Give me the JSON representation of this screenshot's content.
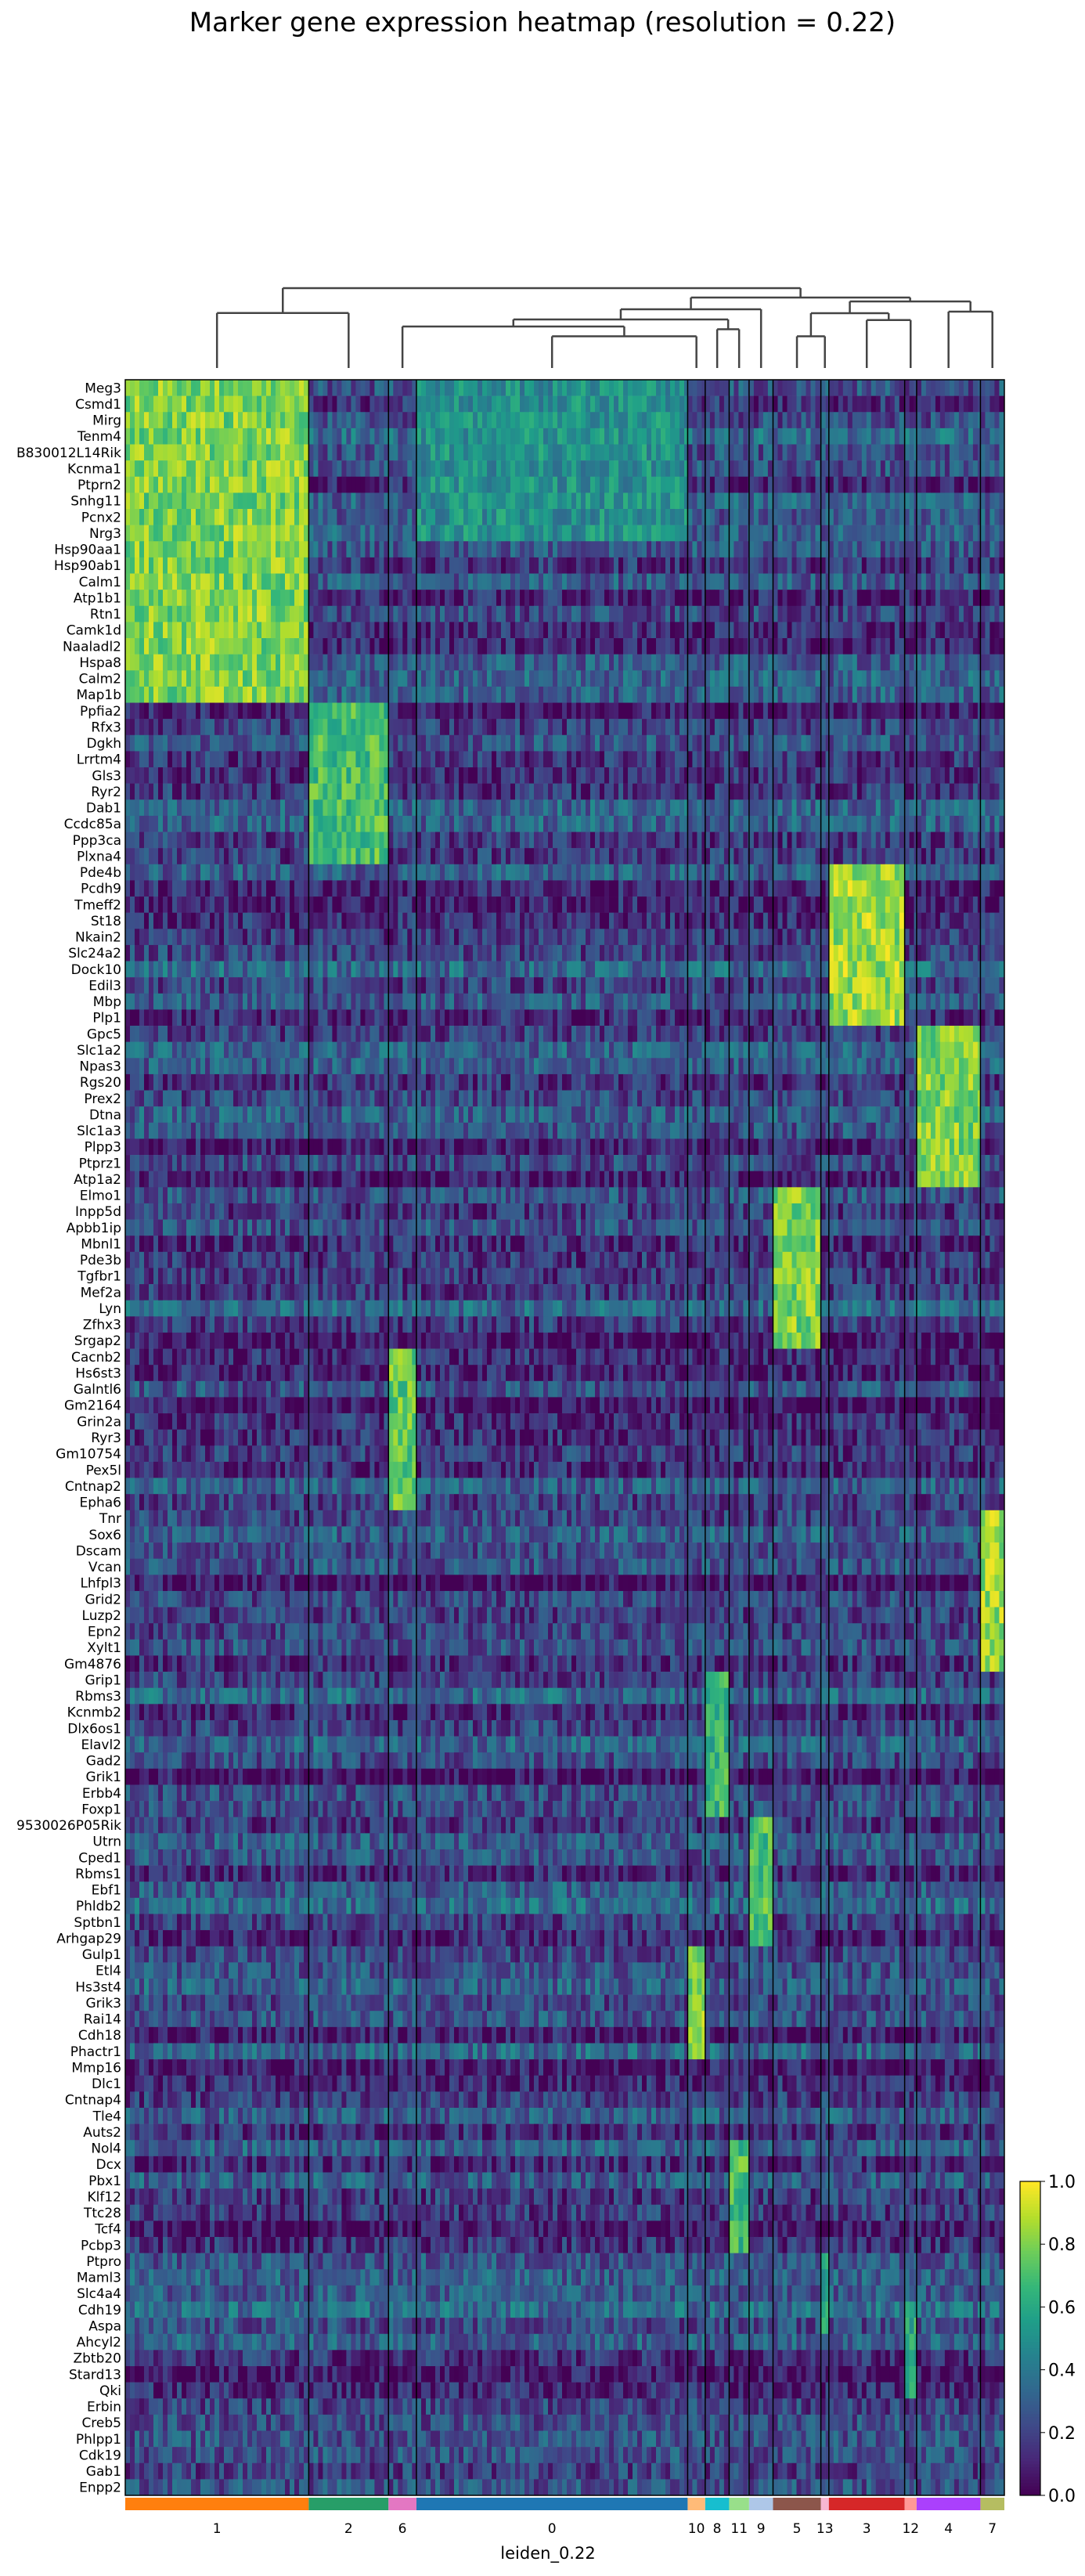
{
  "chart_data": {
    "type": "heatmap",
    "title": "Marker gene expression heatmap (resolution = 0.22)",
    "xlabel": "leiden_0.22",
    "colorbar": {
      "colormap": "viridis",
      "range": [
        0.0,
        1.0
      ],
      "ticks": [
        "0.0",
        "0.2",
        "0.4",
        "0.6",
        "0.8",
        "1.0"
      ]
    },
    "genes": [
      "Meg3",
      "Csmd1",
      "Mirg",
      "Tenm4",
      "B830012L14Rik",
      "Kcnma1",
      "Ptprn2",
      "Snhg11",
      "Pcnx2",
      "Nrg3",
      "Hsp90aa1",
      "Hsp90ab1",
      "Calm1",
      "Atp1b1",
      "Rtn1",
      "Camk1d",
      "Naaladl2",
      "Hspa8",
      "Calm2",
      "Map1b",
      "Ppfia2",
      "Rfx3",
      "Dgkh",
      "Lrrtm4",
      "Gls3",
      "Ryr2",
      "Dab1",
      "Ccdc85a",
      "Ppp3ca",
      "Plxna4",
      "Pde4b",
      "Pcdh9",
      "Tmeff2",
      "St18",
      "Nkain2",
      "Slc24a2",
      "Dock10",
      "Edil3",
      "Mbp",
      "Plp1",
      "Gpc5",
      "Slc1a2",
      "Npas3",
      "Rgs20",
      "Prex2",
      "Dtna",
      "Slc1a3",
      "Plpp3",
      "Ptprz1",
      "Atp1a2",
      "Elmo1",
      "Inpp5d",
      "Apbb1ip",
      "Mbnl1",
      "Pde3b",
      "Tgfbr1",
      "Mef2a",
      "Lyn",
      "Zfhx3",
      "Srgap2",
      "Cacnb2",
      "Hs6st3",
      "Galntl6",
      "Gm2164",
      "Grin2a",
      "Ryr3",
      "Gm10754",
      "Pex5l",
      "Cntnap2",
      "Epha6",
      "Tnr",
      "Sox6",
      "Dscam",
      "Vcan",
      "Lhfpl3",
      "Grid2",
      "Luzp2",
      "Epn2",
      "Xylt1",
      "Gm4876",
      "Grip1",
      "Rbms3",
      "Kcnmb2",
      "Dlx6os1",
      "Elavl2",
      "Gad2",
      "Grik1",
      "Erbb4",
      "Foxp1",
      "9530026P05Rik",
      "Utrn",
      "Cped1",
      "Rbms1",
      "Ebf1",
      "Phldb2",
      "Sptbn1",
      "Arhgap29",
      "Gulp1",
      "Etl4",
      "Hs3st4",
      "Grik3",
      "Rai14",
      "Cdh18",
      "Phactr1",
      "Mmp16",
      "Dlc1",
      "Cntnap4",
      "Tle4",
      "Auts2",
      "Nol4",
      "Dcx",
      "Pbx1",
      "Klf12",
      "Ttc28",
      "Tcf4",
      "Pcbp3",
      "Ptpro",
      "Maml3",
      "Slc4a4",
      "Cdh19",
      "Aspa",
      "Ahcyl2",
      "Zbtb20",
      "Stard13",
      "Qki",
      "Erbin",
      "Creb5",
      "Phlpp1",
      "Cdk19",
      "Gab1",
      "Enpp2"
    ],
    "clusters": [
      {
        "label": "1",
        "color": "#ff7f0e",
        "weight": 230,
        "genes": [
          0,
          20
        ],
        "level": 0.9
      },
      {
        "label": "2",
        "color": "#279e68",
        "weight": 100,
        "genes": [
          20,
          30
        ],
        "level": 0.8
      },
      {
        "label": "6",
        "color": "#e377c2",
        "weight": 35,
        "genes": [
          60,
          70
        ],
        "level": 0.85
      },
      {
        "label": "0",
        "color": "#1f77b4",
        "weight": 340,
        "genes": [
          0,
          10
        ],
        "level": 0.6
      },
      {
        "label": "10",
        "color": "#ffbb78",
        "weight": 22,
        "genes": [
          97,
          104
        ],
        "level": 0.9
      },
      {
        "label": "8",
        "color": "#17becf",
        "weight": 30,
        "genes": [
          80,
          89
        ],
        "level": 0.75
      },
      {
        "label": "11",
        "color": "#98df8a",
        "weight": 25,
        "genes": [
          109,
          116
        ],
        "level": 0.8
      },
      {
        "label": "9",
        "color": "#aec7e8",
        "weight": 30,
        "genes": [
          89,
          97
        ],
        "level": 0.8
      },
      {
        "label": "5",
        "color": "#8c564b",
        "weight": 60,
        "genes": [
          50,
          60
        ],
        "level": 0.9
      },
      {
        "label": "13",
        "color": "#f7b6d2",
        "weight": 10,
        "genes": [
          116,
          121
        ],
        "level": 0.7
      },
      {
        "label": "3",
        "color": "#d62728",
        "weight": 95,
        "genes": [
          30,
          40
        ],
        "level": 0.95
      },
      {
        "label": "12",
        "color": "#ff9896",
        "weight": 15,
        "genes": [
          119,
          125
        ],
        "level": 0.7
      },
      {
        "label": "4",
        "color": "#aa40fc",
        "weight": 80,
        "genes": [
          40,
          50
        ],
        "level": 0.9
      },
      {
        "label": "7",
        "color": "#b5bd61",
        "weight": 30,
        "genes": [
          70,
          80
        ],
        "level": 0.95
      }
    ],
    "dendrogram": [
      {
        "a": "1",
        "b": "2",
        "h": 0.78
      },
      {
        "a": "0",
        "b": "10",
        "h": 0.45
      },
      {
        "a": "8",
        "b": "11",
        "h": 0.55
      },
      {
        "a": "5",
        "b": "13",
        "h": 0.45
      },
      {
        "a": "3",
        "b": "12",
        "h": 0.68
      },
      {
        "a": "4",
        "b": "7",
        "h": 0.8
      }
    ]
  }
}
